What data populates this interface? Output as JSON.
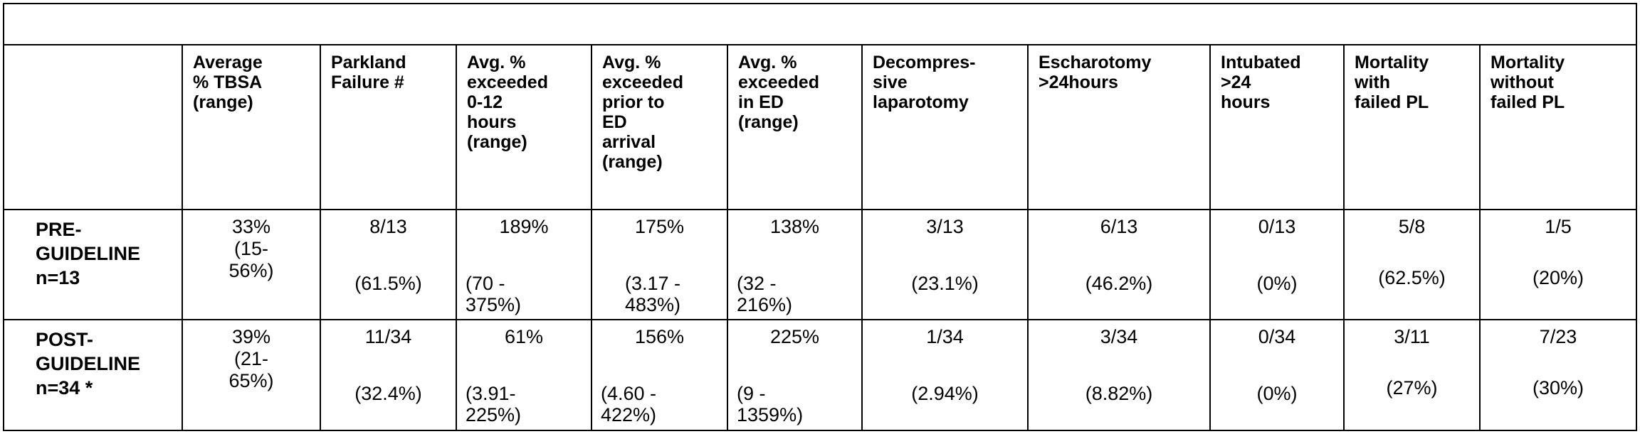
{
  "table": {
    "headers": [
      "",
      "Average\n% TBSA\n(range)",
      "Parkland\nFailure #",
      "Avg. %\nexceeded\n0-12\nhours\n(range)",
      "Avg. %\nexceeded\nprior to\nED\narrival\n(range)",
      "Avg. %\nexceeded\nin ED\n(range)",
      "Decompres-\nsive\nlaparotomy",
      "Escharotomy\n>24hours",
      "Intubated\n>24\nhours",
      "Mortality\nwith\nfailed PL",
      "Mortality\nwithout\nfailed PL"
    ],
    "rows": [
      {
        "group": "PRE-\nGUIDELINE\nn=13",
        "tbsa": "33%\n(15-\n56%)",
        "parkland": {
          "count": "8/13",
          "pct": "(61.5%)"
        },
        "exceeded_0_12": {
          "value": "189%",
          "range": "(70 -\n375%)"
        },
        "exceeded_prior_ed": {
          "value": "175%",
          "range": "(3.17 -\n483%)"
        },
        "exceeded_in_ed": {
          "value": "138%",
          "range": "(32 -\n216%)"
        },
        "laparotomy": {
          "count": "3/13",
          "pct": "(23.1%)"
        },
        "escharotomy": {
          "count": "6/13",
          "pct": "(46.2%)"
        },
        "intubated": {
          "count": "0/13",
          "pct": "(0%)"
        },
        "mortality_failed": {
          "count": "5/8",
          "pct": "(62.5%)"
        },
        "mortality_not_failed": {
          "count": "1/5",
          "pct": "(20%)"
        }
      },
      {
        "group": "POST-\nGUIDELINE\nn=34 *",
        "tbsa": "39%\n(21-\n65%)",
        "parkland": {
          "count": "11/34",
          "pct": "(32.4%)"
        },
        "exceeded_0_12": {
          "value": "61%",
          "range": "(3.91-\n225%)"
        },
        "exceeded_prior_ed": {
          "value": "156%",
          "range": "(4.60 -\n422%)"
        },
        "exceeded_in_ed": {
          "value": "225%",
          "range": "(9 -\n1359%)"
        },
        "laparotomy": {
          "count": "1/34",
          "pct": "(2.94%)"
        },
        "escharotomy": {
          "count": "3/34",
          "pct": "(8.82%)"
        },
        "intubated": {
          "count": "0/34",
          "pct": "(0%)"
        },
        "mortality_failed": {
          "count": "3/11",
          "pct": "(27%)"
        },
        "mortality_not_failed": {
          "count": "7/23",
          "pct": "(30%)"
        }
      }
    ]
  }
}
